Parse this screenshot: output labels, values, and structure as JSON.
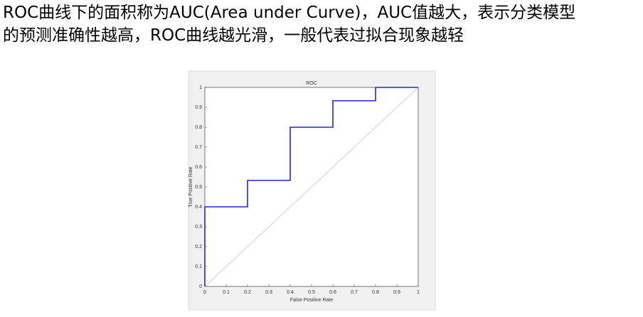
{
  "paragraph": [
    "ROC曲线下的面积称为AUC(Area under Curve)，AUC值越大，表示分类模型",
    "的预测准确性越高，ROC曲线越光滑，一般代表过拟合现象越轻"
  ],
  "chart_data": {
    "type": "line",
    "title": "ROC",
    "xlabel": "False Positive Rate",
    "ylabel": "True Positive Rate",
    "xlim": [
      0,
      1
    ],
    "ylim": [
      0,
      1
    ],
    "xticks": [
      0,
      0.1,
      0.2,
      0.3,
      0.4,
      0.5,
      0.6,
      0.7,
      0.8,
      0.9,
      1
    ],
    "yticks": [
      0,
      0.1,
      0.2,
      0.3,
      0.4,
      0.5,
      0.6,
      0.7,
      0.8,
      0.9,
      1
    ],
    "series": [
      {
        "color": "#d0d0d0",
        "x": [
          0,
          1
        ],
        "values": [
          0,
          1
        ]
      },
      {
        "color": "#2424e0",
        "x": [
          0,
          0,
          0.2,
          0.2,
          0.4,
          0.4,
          0.6,
          0.6,
          0.8,
          0.8,
          1
        ],
        "values": [
          0,
          0.4,
          0.4,
          0.533,
          0.533,
          0.8,
          0.8,
          0.933,
          0.933,
          1,
          1
        ]
      }
    ]
  }
}
